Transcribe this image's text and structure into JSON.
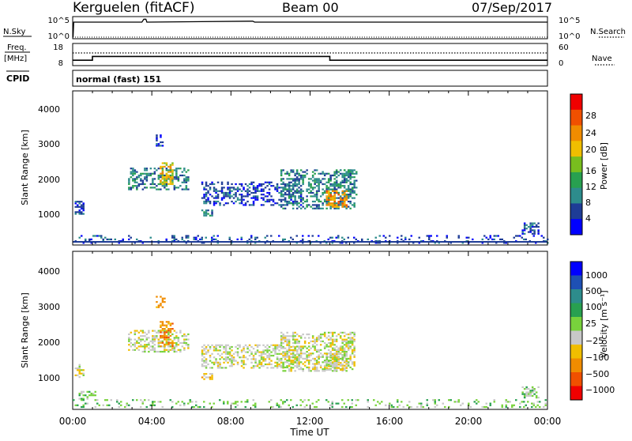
{
  "header": {
    "station": "Kerguelen (fitACF)",
    "beam": "Beam 00",
    "date": "07/Sep/2017"
  },
  "nsky_panel": {
    "left_label": "N.Sky",
    "right_label": "N.Search",
    "left_ticks": [
      "10^5",
      "10^0"
    ],
    "right_ticks": [
      "10^5",
      "10^0"
    ]
  },
  "freq_panel": {
    "left_label_1": "Freq.",
    "left_label_2": "[MHz]",
    "left_ticks": [
      "18",
      "8"
    ],
    "right_ticks": [
      "60",
      "0"
    ],
    "right_label": "Nave",
    "cpid_label": "CPID",
    "cpid_value": "normal (fast) 151"
  },
  "power_panel": {
    "ylabel": "Slant Range [km]",
    "yticks": [
      "1000",
      "2000",
      "3000",
      "4000"
    ],
    "colorbar_label": "Power [dB]",
    "colorbar_ticks": [
      "4",
      "8",
      "12",
      "16",
      "20",
      "24",
      "28"
    ],
    "colors": [
      "#0000ff",
      "#1e3c96",
      "#2d8c8c",
      "#28a050",
      "#78be1e",
      "#f0be00",
      "#f08c00",
      "#f05000",
      "#f00000"
    ]
  },
  "velocity_panel": {
    "ylabel": "Slant Range [km]",
    "yticks": [
      "1000",
      "2000",
      "3000",
      "4000"
    ],
    "colorbar_label": "Velocity [m s⁻¹]",
    "colorbar_ticks": [
      "1000",
      "500",
      "100",
      "25",
      "−25",
      "−100",
      "−500",
      "−1000"
    ],
    "colors": [
      "#0000ff",
      "#1e50b4",
      "#2d8c8c",
      "#28a050",
      "#78d23c",
      "#c8c8c8",
      "#f0be00",
      "#f08c00",
      "#f05000",
      "#f00000"
    ]
  },
  "xaxis": {
    "label": "Time UT",
    "ticks": [
      "00:00",
      "04:00",
      "08:00",
      "12:00",
      "16:00",
      "20:00",
      "00:00"
    ]
  },
  "chart_data": [
    {
      "type": "line",
      "name": "nsky",
      "x": [
        0,
        0.02,
        0.05,
        3.5,
        3.6,
        3.7,
        3.75,
        3.8,
        9,
        9.1,
        9.2,
        24
      ],
      "y": [
        0.05,
        0.05,
        0.8,
        0.8,
        0.95,
        0.95,
        0.8,
        0.8,
        0.85,
        0.85,
        0.8,
        0.8
      ]
    },
    {
      "type": "line",
      "name": "frequency",
      "x": [
        0,
        1,
        1,
        13,
        13,
        24
      ],
      "y": [
        10,
        10,
        12,
        12,
        10,
        10
      ]
    },
    {
      "type": "heatmap",
      "title": "Power [dB]",
      "xlim": [
        0,
        24
      ],
      "ylim": [
        180,
        4500
      ],
      "scatter_regions": [
        {
          "t0": 0.1,
          "t1": 0.5,
          "r0": 1050,
          "r1": 1400,
          "level": 1,
          "density": 0.7
        },
        {
          "t0": 2.8,
          "t1": 5.8,
          "r0": 1750,
          "r1": 2350,
          "level": 2,
          "density": 0.5
        },
        {
          "t0": 4.4,
          "t1": 5.0,
          "r0": 1900,
          "r1": 2500,
          "level": 5,
          "density": 0.6
        },
        {
          "t0": 4.2,
          "t1": 4.6,
          "r0": 3000,
          "r1": 3300,
          "level": 1,
          "density": 0.4
        },
        {
          "t0": 6.5,
          "t1": 7.0,
          "r0": 980,
          "r1": 1150,
          "level": 2,
          "density": 0.6
        },
        {
          "t0": 6.5,
          "t1": 11.5,
          "r0": 1300,
          "r1": 1950,
          "level": 1,
          "density": 0.45
        },
        {
          "t0": 10.5,
          "t1": 14.2,
          "r0": 1200,
          "r1": 2300,
          "level": 2,
          "density": 0.45
        },
        {
          "t0": 12.8,
          "t1": 13.8,
          "r0": 1250,
          "r1": 1700,
          "level": 6,
          "density": 0.6
        },
        {
          "t0": 13.0,
          "t1": 14.3,
          "r0": 1600,
          "r1": 2300,
          "level": 2,
          "density": 0.35
        },
        {
          "t0": 22.7,
          "t1": 23.5,
          "r0": 450,
          "r1": 780,
          "level": 1,
          "density": 0.5
        },
        {
          "t0": 0.0,
          "t1": 24.0,
          "r0": 180,
          "r1": 420,
          "level": 1,
          "density": 0.22
        }
      ]
    },
    {
      "type": "heatmap",
      "title": "Velocity [m s-1]",
      "xlim": [
        0,
        24
      ],
      "ylim": [
        180,
        4500
      ],
      "scatter_regions": [
        {
          "t0": 0.1,
          "t1": 0.5,
          "r0": 1050,
          "r1": 1400,
          "level": 5,
          "density": 0.5
        },
        {
          "t0": 2.8,
          "t1": 5.8,
          "r0": 1750,
          "r1": 2350,
          "level": 5,
          "density": 0.5
        },
        {
          "t0": 4.4,
          "t1": 5.0,
          "r0": 1900,
          "r1": 2600,
          "level": 7,
          "density": 0.55
        },
        {
          "t0": 4.2,
          "t1": 4.6,
          "r0": 3000,
          "r1": 3300,
          "level": 7,
          "density": 0.4
        },
        {
          "t0": 6.5,
          "t1": 7.0,
          "r0": 980,
          "r1": 1150,
          "level": 6,
          "density": 0.6
        },
        {
          "t0": 6.5,
          "t1": 11.5,
          "r0": 1300,
          "r1": 1950,
          "level": 5,
          "density": 0.45
        },
        {
          "t0": 10.5,
          "t1": 14.2,
          "r0": 1200,
          "r1": 2300,
          "level": 5,
          "density": 0.5
        },
        {
          "t0": 12.8,
          "t1": 13.8,
          "r0": 1250,
          "r1": 1700,
          "level": 5,
          "density": 0.6
        },
        {
          "t0": 22.7,
          "t1": 23.5,
          "r0": 450,
          "r1": 780,
          "level": 4,
          "density": 0.5
        },
        {
          "t0": 0.3,
          "t1": 1.2,
          "r0": 450,
          "r1": 650,
          "level": 4,
          "density": 0.5
        },
        {
          "t0": 0.0,
          "t1": 24.0,
          "r0": 180,
          "r1": 420,
          "level": 4,
          "density": 0.2
        }
      ]
    }
  ]
}
